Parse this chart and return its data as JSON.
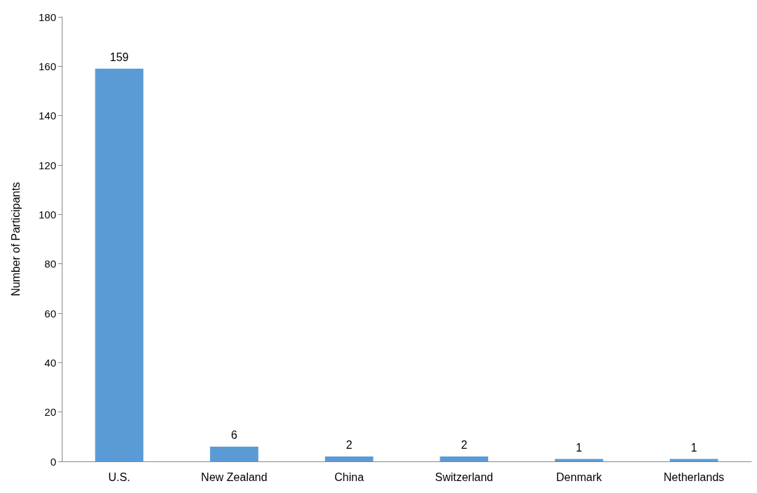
{
  "chart_data": {
    "type": "bar",
    "ylabel": "Number of Participants",
    "categories": [
      "U.S.",
      "New Zealand",
      "China",
      "Switzerland",
      "Denmark",
      "Netherlands"
    ],
    "values": [
      159,
      6,
      2,
      2,
      1,
      1
    ],
    "color": "#5b9bd5",
    "ylim": [
      0,
      180
    ],
    "yticks": [
      0,
      20,
      40,
      60,
      80,
      100,
      120,
      140,
      160,
      180
    ],
    "grid": false,
    "data_labels": true
  }
}
